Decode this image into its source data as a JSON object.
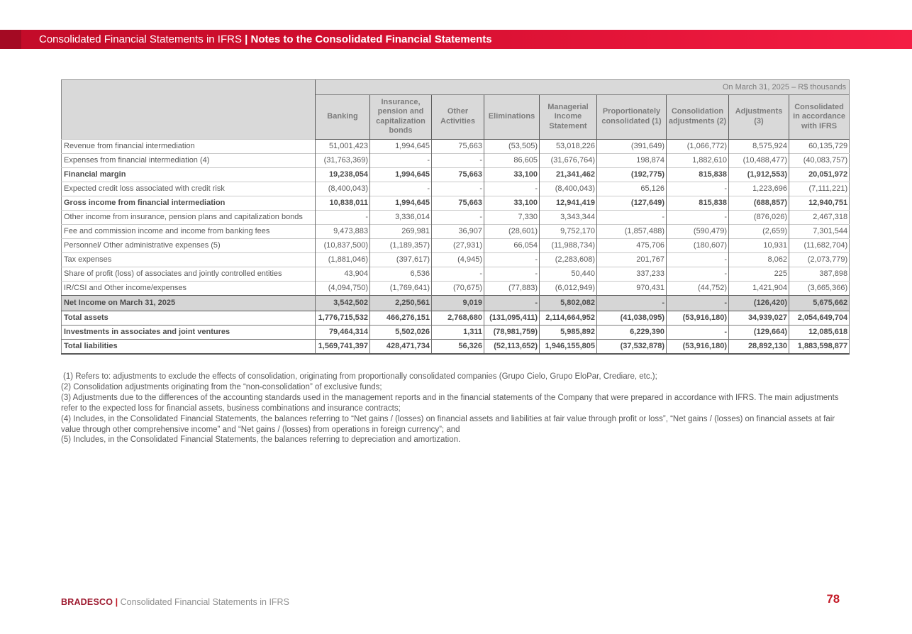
{
  "banner": {
    "title_regular": "Consolidated Financial Statements in IFRS",
    "separator": "|",
    "title_bold": "Notes to the Consolidated Financial Statements"
  },
  "table": {
    "period_label": "On March 31, 2025 – R$ thousands",
    "columns": [
      "Banking",
      "Insurance, pension and capitalization bonds",
      "Other Activities",
      "Eliminations",
      "Managerial Income Statement",
      "Proportionately consolidated (1)",
      "Consolidation adjustments (2)",
      "Adjustments (3)",
      "Consolidated in accordance with IFRS"
    ],
    "rows": [
      {
        "label": "Revenue from financial intermediation",
        "style": "normal",
        "values": [
          "51,001,423",
          "1,994,645",
          "75,663",
          "(53,505)",
          "53,018,226",
          "(391,649)",
          "(1,066,772)",
          "8,575,924",
          "60,135,729"
        ]
      },
      {
        "label": "Expenses from financial intermediation (4)",
        "style": "normal",
        "values": [
          "(31,763,369)",
          "-",
          "-",
          "86,605",
          "(31,676,764)",
          "198,874",
          "1,882,610",
          "(10,488,477)",
          "(40,083,757)"
        ]
      },
      {
        "label": "Financial margin",
        "style": "subtotal",
        "values": [
          "19,238,054",
          "1,994,645",
          "75,663",
          "33,100",
          "21,341,462",
          "(192,775)",
          "815,838",
          "(1,912,553)",
          "20,051,972"
        ]
      },
      {
        "label": "Expected credit loss associated with credit risk",
        "style": "normal",
        "values": [
          "(8,400,043)",
          "-",
          "-",
          "-",
          "(8,400,043)",
          "65,126",
          "-",
          "1,223,696",
          "(7,111,221)"
        ]
      },
      {
        "label": "Gross income from financial intermediation",
        "style": "subtotal",
        "values": [
          "10,838,011",
          "1,994,645",
          "75,663",
          "33,100",
          "12,941,419",
          "(127,649)",
          "815,838",
          "(688,857)",
          "12,940,751"
        ]
      },
      {
        "label": "Other income from insurance, pension plans and capitalization bonds",
        "style": "normal",
        "values": [
          "-",
          "3,336,014",
          "-",
          "7,330",
          "3,343,344",
          "-",
          "-",
          "(876,026)",
          "2,467,318"
        ]
      },
      {
        "label": "Fee and commission income and income from banking fees",
        "style": "normal",
        "values": [
          "9,473,883",
          "269,981",
          "36,907",
          "(28,601)",
          "9,752,170",
          "(1,857,488)",
          "(590,479)",
          "(2,659)",
          "7,301,544"
        ]
      },
      {
        "label": "Personnel/ Other administrative expenses (5)",
        "style": "normal",
        "values": [
          "(10,837,500)",
          "(1,189,357)",
          "(27,931)",
          "66,054",
          "(11,988,734)",
          "475,706",
          "(180,607)",
          "10,931",
          "(11,682,704)"
        ]
      },
      {
        "label": "Tax expenses",
        "style": "normal",
        "values": [
          "(1,881,046)",
          "(397,617)",
          "(4,945)",
          "-",
          "(2,283,608)",
          "201,767",
          "-",
          "8,062",
          "(2,073,779)"
        ]
      },
      {
        "label": "Share of profit (loss) of associates and jointly controlled entities",
        "style": "normal",
        "values": [
          "43,904",
          "6,536",
          "-",
          "-",
          "50,440",
          "337,233",
          "-",
          "225",
          "387,898"
        ]
      },
      {
        "label": "IR/CSI and Other income/expenses",
        "style": "normal",
        "values": [
          "(4,094,750)",
          "(1,769,641)",
          "(70,675)",
          "(77,883)",
          "(6,012,949)",
          "970,431",
          "(44,752)",
          "1,421,904",
          "(3,665,366)"
        ]
      },
      {
        "label": "Net Income on March 31, 2025",
        "style": "net-income",
        "values": [
          "3,542,502",
          "2,250,561",
          "9,019",
          "-",
          "5,802,082",
          "-",
          "-",
          "(126,420)",
          "5,675,662"
        ]
      },
      {
        "label": "Total assets",
        "style": "total",
        "values": [
          "1,776,715,532",
          "466,276,151",
          "2,768,680",
          "(131,095,411)",
          "2,114,664,952",
          "(41,038,095)",
          "(53,916,180)",
          "34,939,027",
          "2,054,649,704"
        ]
      },
      {
        "label": "Investments in associates and joint ventures",
        "style": "total",
        "values": [
          "79,464,314",
          "5,502,026",
          "1,311",
          "(78,981,759)",
          "5,985,892",
          "6,229,390",
          "-",
          "(129,664)",
          "12,085,618"
        ]
      },
      {
        "label": "Total liabilities",
        "style": "total",
        "values": [
          "1,569,741,397",
          "428,471,734",
          "56,326",
          "(52,113,652)",
          "1,946,155,805",
          "(37,532,878)",
          "(53,916,180)",
          "28,892,130",
          "1,883,598,877"
        ]
      }
    ]
  },
  "footnotes": [
    "(1) Refers to: adjustments to exclude the effects of consolidation, originating from proportionally consolidated companies (Grupo Cielo, Grupo EloPar, Crediare, etc.);",
    "(2) Consolidation adjustments originating from the “non-consolidation” of exclusive funds;",
    "(3) Adjustments due to the differences of the accounting standards used in the management reports and in the financial statements of the Company that were prepared in accordance with IFRS. The main adjustments refer to the expected loss for financial assets, business combinations and insurance contracts;",
    "(4) Includes, in the Consolidated Financial Statements, the balances referring to “Net gains / (losses) on financial assets and liabilities at fair value through profit or loss”, “Net gains / (losses) on financial assets at fair value through other comprehensive income” and “Net gains / (losses) from operations in foreign currency”; and",
    "(5) Includes, in the Consolidated Financial Statements, the balances referring to depreciation and amortization."
  ],
  "footer": {
    "brand": "BRADESCO",
    "separator": "|",
    "label": "Consolidated Financial Statements in IFRS",
    "page_number": "78"
  },
  "colors": {
    "banner_dark_left": "#a40a23",
    "banner_gradient_start": "#c30c29",
    "banner_gradient_end": "#f41e44",
    "header_cell_gray": "#d9d9d9",
    "shaded_row_gray": "#d6d6d6",
    "border_dark": "#595959",
    "border_light": "#c9c9c9",
    "body_text_gray": "#595959",
    "header_text_gray": "#7c7c7c",
    "brand_red": "#9e1b30",
    "page_number_red": "#c31926"
  }
}
